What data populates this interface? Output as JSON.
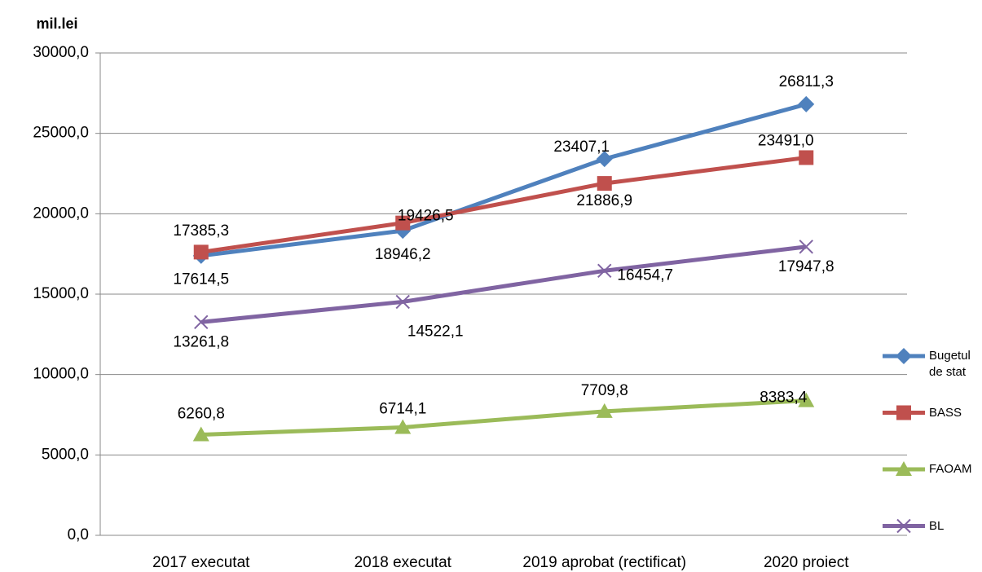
{
  "chart_data": {
    "type": "line",
    "y_axis_label": "mil.lei",
    "categories": [
      "2017 executat",
      "2018 executat",
      "2019 aprobat (rectificat)",
      "2020 proiect"
    ],
    "series": [
      {
        "name": "Bugetul de stat",
        "color": "#4f81bd",
        "marker": "diamond",
        "values": [
          17385.3,
          18946.2,
          23407.1,
          26811.3
        ],
        "value_labels": [
          "17385,3",
          "18946,2",
          "23407,1",
          "26811,3"
        ]
      },
      {
        "name": "BASS",
        "color": "#c0504d",
        "marker": "square",
        "values": [
          17614.5,
          19426.5,
          21886.9,
          23491.0
        ],
        "value_labels": [
          "17614,5",
          "19426,5",
          "21886,9",
          "23491,0"
        ]
      },
      {
        "name": "FAOAM",
        "color": "#9bbb59",
        "marker": "triangle",
        "values": [
          6260.8,
          6714.1,
          7709.8,
          8383.4
        ],
        "value_labels": [
          "6260,8",
          "6714,1",
          "7709,8",
          "8383,4"
        ]
      },
      {
        "name": "BL",
        "color": "#8064a2",
        "marker": "x",
        "values": [
          13261.8,
          14522.1,
          16454.7,
          17947.8
        ],
        "value_labels": [
          "13261,8",
          "14522,1",
          "16454,7",
          "17947,8"
        ]
      }
    ],
    "ylim": [
      0,
      30000
    ],
    "yticks": [
      {
        "value": 0,
        "label": "0,0"
      },
      {
        "value": 5000,
        "label": "5000,0"
      },
      {
        "value": 10000,
        "label": "10000,0"
      },
      {
        "value": 15000,
        "label": "15000,0"
      },
      {
        "value": 20000,
        "label": "20000,0"
      },
      {
        "value": 25000,
        "label": "25000,0"
      },
      {
        "value": 30000,
        "label": "30000,0"
      }
    ],
    "grid": true,
    "legend": "right"
  }
}
